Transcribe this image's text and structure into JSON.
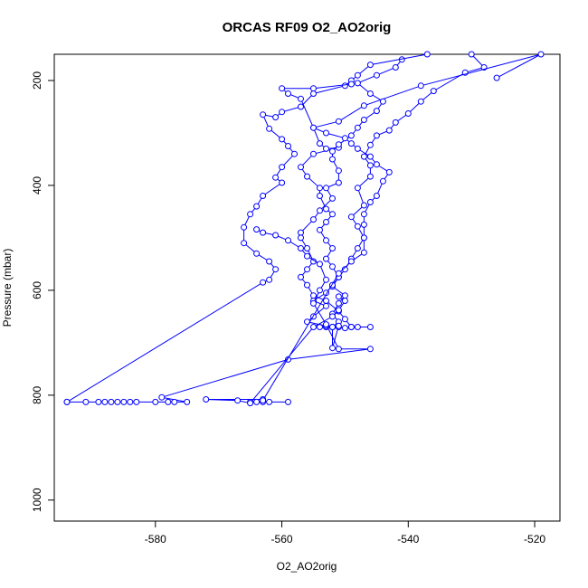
{
  "chart_data": {
    "type": "line",
    "title": "ORCAS RF09 O2_AO2orig",
    "xlabel": "O2_AO2orig",
    "ylabel": "Pressure (mbar)",
    "xlim": [
      -596,
      -516
    ],
    "ylim": [
      1040,
      150
    ],
    "x_ticks": [
      -580,
      -560,
      -540,
      -520
    ],
    "y_ticks": [
      200,
      400,
      600,
      800,
      1000
    ],
    "grid": false,
    "legend": "none",
    "series_color": "#0000ff",
    "series": [
      {
        "points": [
          [
            -530,
            150
          ],
          [
            -528,
            175
          ],
          [
            -531,
            185
          ],
          [
            -536,
            220
          ],
          [
            -538,
            240
          ],
          [
            -540,
            263
          ],
          [
            -542,
            280
          ],
          [
            -543,
            295
          ],
          [
            -545,
            305
          ],
          [
            -546,
            323
          ],
          [
            -547,
            345
          ],
          [
            -546,
            362
          ],
          [
            -546,
            383
          ],
          [
            -548,
            405
          ],
          [
            -547,
            438
          ],
          [
            -549,
            460
          ],
          [
            -548,
            478
          ],
          [
            -547,
            500
          ],
          [
            -548,
            520
          ],
          [
            -549,
            540
          ],
          [
            -550,
            560
          ],
          [
            -551,
            575
          ],
          [
            -552,
            593
          ],
          [
            -550,
            610
          ],
          [
            -551,
            625
          ],
          [
            -552,
            645
          ],
          [
            -551,
            660
          ],
          [
            -552,
            670
          ],
          [
            -553,
            670
          ],
          [
            -554,
            670
          ],
          [
            -553,
            668
          ],
          [
            -551,
            670
          ],
          [
            -550,
            672
          ],
          [
            -549,
            670
          ],
          [
            -548,
            670
          ],
          [
            -546,
            670
          ]
        ]
      },
      {
        "points": [
          [
            -526,
            195
          ],
          [
            -519,
            150
          ],
          [
            -538,
            210
          ],
          [
            -547,
            248
          ],
          [
            -551,
            278
          ],
          [
            -555,
            290
          ],
          [
            -554,
            320
          ],
          [
            -553,
            330
          ],
          [
            -551,
            328
          ],
          [
            -555,
            340
          ],
          [
            -557,
            365
          ],
          [
            -556,
            383
          ],
          [
            -554,
            405
          ],
          [
            -554,
            420
          ],
          [
            -553,
            445
          ],
          [
            -552,
            455
          ],
          [
            -553,
            470
          ],
          [
            -554,
            485
          ],
          [
            -553,
            505
          ],
          [
            -552,
            520
          ],
          [
            -553,
            540
          ],
          [
            -552,
            555
          ],
          [
            -551,
            575
          ],
          [
            -552,
            590
          ],
          [
            -553,
            605
          ],
          [
            -555,
            620
          ],
          [
            -553,
            630
          ],
          [
            -555,
            650
          ],
          [
            -556,
            660
          ],
          [
            -553,
            668
          ],
          [
            -552,
            670
          ],
          [
            -551,
            668
          ],
          [
            -552,
            710
          ],
          [
            -552,
            670
          ]
        ]
      },
      {
        "points": [
          [
            -541,
            160
          ],
          [
            -542,
            175
          ],
          [
            -545,
            190
          ],
          [
            -548,
            205
          ],
          [
            -546,
            225
          ],
          [
            -544,
            240
          ],
          [
            -545,
            258
          ],
          [
            -547,
            275
          ],
          [
            -548,
            290
          ],
          [
            -549,
            305
          ],
          [
            -551,
            322
          ],
          [
            -552,
            335
          ],
          [
            -552,
            350
          ],
          [
            -551,
            372
          ],
          [
            -551,
            395
          ],
          [
            -553,
            405
          ],
          [
            -552,
            425
          ],
          [
            -554,
            448
          ],
          [
            -555,
            465
          ],
          [
            -557,
            490
          ],
          [
            -557,
            500
          ],
          [
            -556,
            520
          ],
          [
            -555,
            545
          ],
          [
            -556,
            560
          ],
          [
            -557,
            575
          ],
          [
            -556,
            590
          ],
          [
            -555,
            610
          ],
          [
            -553,
            620
          ],
          [
            -551,
            640
          ],
          [
            -550,
            655
          ],
          [
            -549,
            670
          ]
        ]
      },
      {
        "points": [
          [
            -537,
            150
          ],
          [
            -546,
            170
          ],
          [
            -548,
            190
          ],
          [
            -549,
            200
          ],
          [
            -550,
            210
          ],
          [
            -555,
            225
          ],
          [
            -557,
            250
          ],
          [
            -560,
            260
          ],
          [
            -561,
            270
          ],
          [
            -563,
            265
          ],
          [
            -562,
            292
          ],
          [
            -560,
            312
          ],
          [
            -559,
            325
          ],
          [
            -558,
            340
          ],
          [
            -560,
            365
          ],
          [
            -561,
            385
          ],
          [
            -560,
            395
          ],
          [
            -563,
            420
          ],
          [
            -564,
            440
          ],
          [
            -565,
            455
          ],
          [
            -566,
            480
          ],
          [
            -566,
            510
          ],
          [
            -564,
            530
          ],
          [
            -562,
            545
          ],
          [
            -561,
            560
          ],
          [
            -562,
            580
          ],
          [
            -563,
            585
          ],
          [
            -594,
            813
          ]
        ]
      },
      {
        "points": [
          [
            -594,
            813
          ],
          [
            -591,
            813
          ],
          [
            -589,
            813
          ],
          [
            -588,
            813
          ],
          [
            -587,
            813
          ],
          [
            -586,
            813
          ],
          [
            -585,
            813
          ],
          [
            -584,
            813
          ],
          [
            -583,
            813
          ],
          [
            -580,
            813
          ],
          [
            -578,
            813
          ],
          [
            -577,
            813
          ],
          [
            -575,
            813
          ],
          [
            -579,
            804
          ],
          [
            -559,
            732
          ],
          [
            -546,
            712
          ],
          [
            -551,
            712
          ],
          [
            -553,
            665
          ],
          [
            -555,
            625
          ],
          [
            -554,
            600
          ],
          [
            -553,
            580
          ],
          [
            -554,
            550
          ],
          [
            -556,
            535
          ],
          [
            -557,
            520
          ],
          [
            -559,
            505
          ],
          [
            -561,
            495
          ],
          [
            -563,
            490
          ],
          [
            -564,
            484
          ]
        ]
      },
      {
        "points": [
          [
            -565,
            813
          ],
          [
            -564,
            813
          ],
          [
            -563,
            813
          ],
          [
            -563,
            808
          ],
          [
            -572,
            808
          ],
          [
            -567,
            810
          ],
          [
            -565,
            815
          ],
          [
            -555,
            670
          ],
          [
            -552,
            650
          ],
          [
            -551,
            638
          ],
          [
            -550,
            620
          ],
          [
            -551,
            612
          ]
        ]
      },
      {
        "points": [
          [
            -559,
            813
          ],
          [
            -562,
            813
          ],
          [
            -563,
            810
          ],
          [
            -551,
            568
          ],
          [
            -549,
            545
          ],
          [
            -547,
            528
          ],
          [
            -547,
            500
          ],
          [
            -547,
            475
          ],
          [
            -547,
            455
          ],
          [
            -546,
            432
          ],
          [
            -545,
            420
          ],
          [
            -544,
            392
          ],
          [
            -543,
            375
          ],
          [
            -545,
            360
          ],
          [
            -546,
            345
          ],
          [
            -548,
            330
          ],
          [
            -549,
            320
          ],
          [
            -550,
            310
          ],
          [
            -553,
            300
          ],
          [
            -555,
            290
          ],
          [
            -557,
            235
          ],
          [
            -559,
            225
          ],
          [
            -560,
            215
          ],
          [
            -555,
            215
          ],
          [
            -549,
            207
          ]
        ]
      }
    ]
  }
}
